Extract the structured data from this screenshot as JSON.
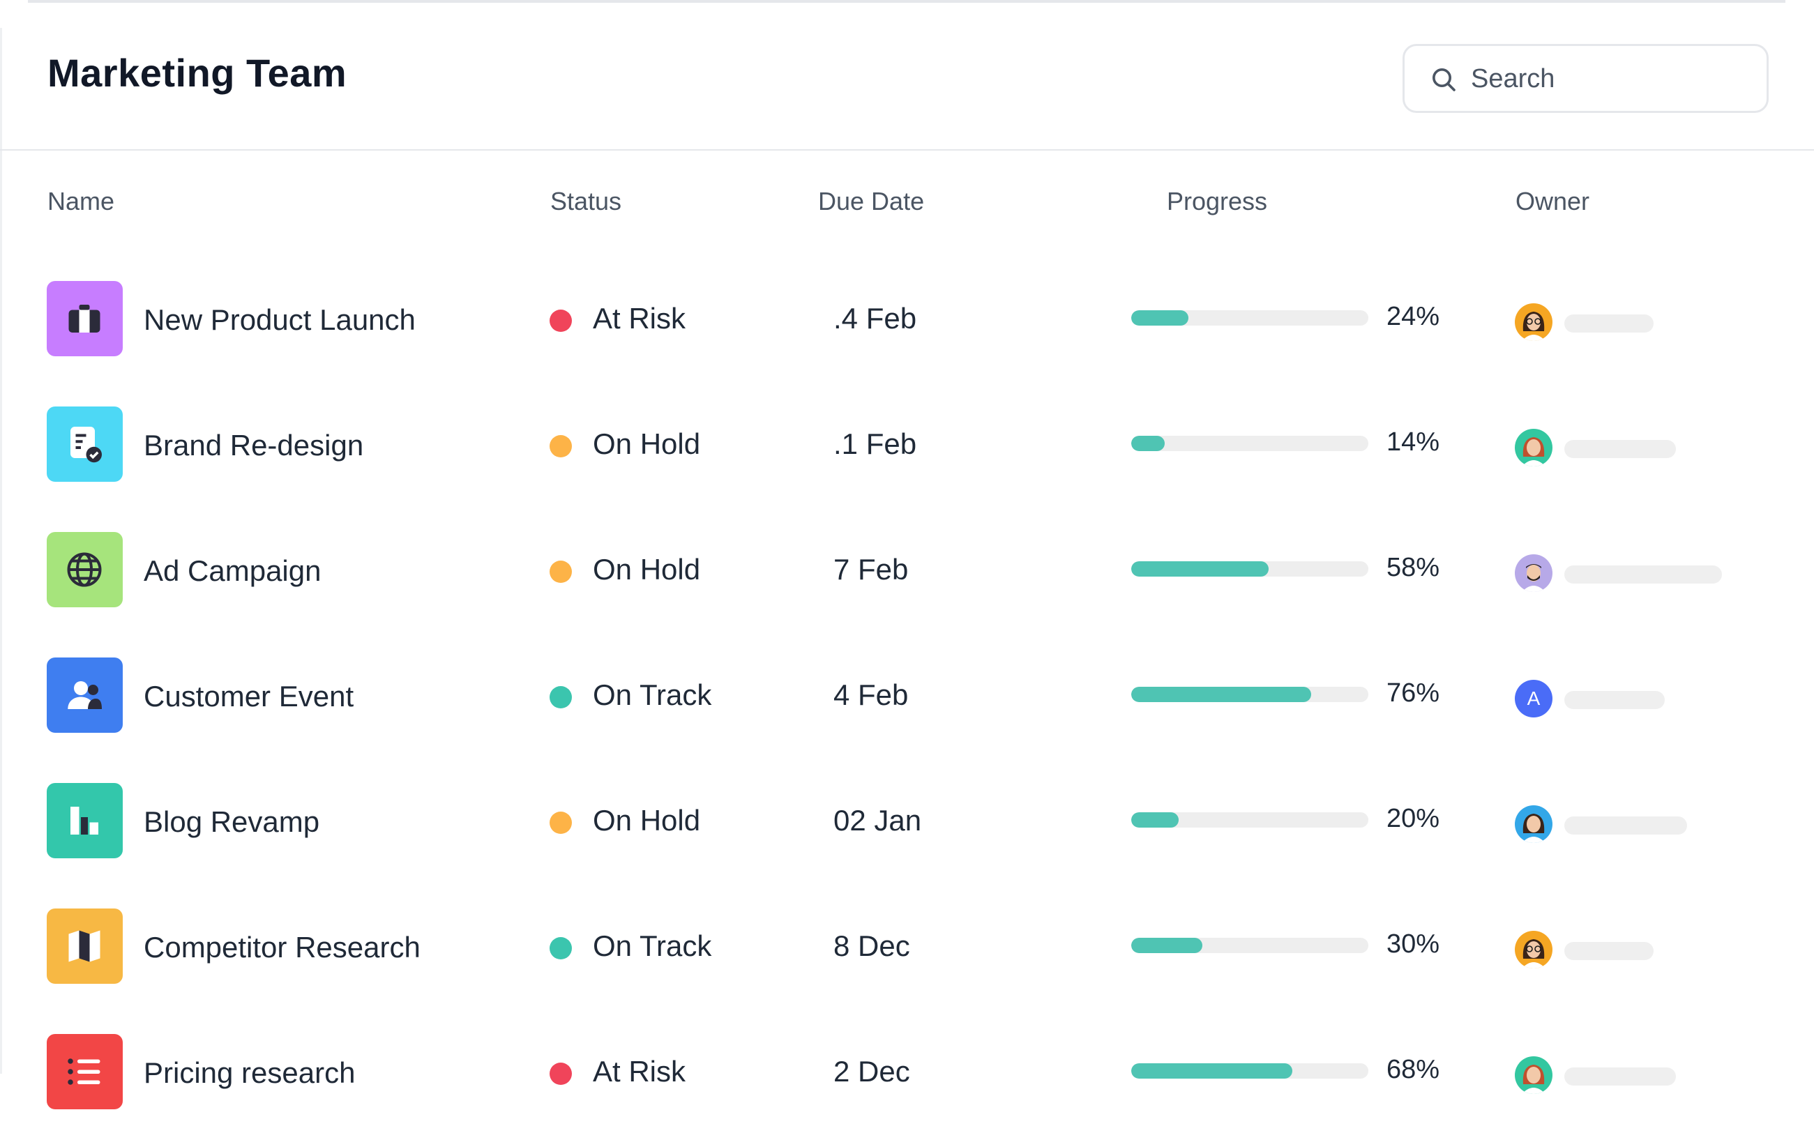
{
  "header": {
    "title": "Marketing Team",
    "search": {
      "placeholder": "Search",
      "value": ""
    }
  },
  "columns": {
    "name": "Name",
    "status": "Status",
    "due": "Due Date",
    "progress": "Progress",
    "owner": "Owner"
  },
  "colors": {
    "at_risk": "#f0445a",
    "on_hold": "#fdb347",
    "on_track": "#3bc5ae",
    "progress_fill": "#4fc4b3",
    "progress_track": "#eeeeee"
  },
  "rows": [
    {
      "name": "New Product Launch",
      "icon": "briefcase-icon",
      "icon_color": "#c77dff",
      "status": "At Risk",
      "status_key": "at_risk",
      "due": ".4 Feb",
      "progress": 0.24,
      "progress_label": "24%",
      "owner": "avatar-woman-glasses",
      "avatar_bg": "#f5a623"
    },
    {
      "name": "Brand Re-design",
      "icon": "document-check-icon",
      "icon_color": "#4dd8f5",
      "status": "On Hold",
      "status_key": "on_hold",
      "due": ".1 Feb",
      "progress": 0.14,
      "progress_label": "14%",
      "owner": "avatar-woman-redhair",
      "avatar_bg": "#33c7a0"
    },
    {
      "name": "Ad Campaign",
      "icon": "globe-icon",
      "icon_color": "#a6e47c",
      "status": "On Hold",
      "status_key": "on_hold",
      "due": "7 Feb",
      "progress": 0.58,
      "progress_label": "58%",
      "owner": "avatar-man-beard",
      "avatar_bg": "#b7a9e8"
    },
    {
      "name": "Customer Event",
      "icon": "user-group-icon",
      "icon_color": "#3f7ef0",
      "status": "On Track",
      "status_key": "on_track",
      "due": "4 Feb",
      "progress": 0.76,
      "progress_label": "76%",
      "owner": "A",
      "avatar_bg": "#4a6cf7"
    },
    {
      "name": "Blog Revamp",
      "icon": "chart-bars-icon",
      "icon_color": "#33c7ab",
      "status": "On Hold",
      "status_key": "on_hold",
      "due": "02 Jan",
      "progress": 0.2,
      "progress_label": "20%",
      "owner": "avatar-woman-smile",
      "avatar_bg": "#33a7e8"
    },
    {
      "name": "Competitor Research",
      "icon": "map-icon",
      "icon_color": "#f7b844",
      "status": "On Track",
      "status_key": "on_track",
      "due": "8 Dec",
      "progress": 0.3,
      "progress_label": "30%",
      "owner": "avatar-woman-glasses",
      "avatar_bg": "#f5a623"
    },
    {
      "name": "Pricing research",
      "icon": "list-icon",
      "icon_color": "#f24646",
      "status": "At Risk",
      "status_key": "at_risk",
      "due": "2 Dec",
      "progress": 0.68,
      "progress_label": "68%",
      "owner": "avatar-woman-redhair",
      "avatar_bg": "#33c7a0"
    }
  ]
}
